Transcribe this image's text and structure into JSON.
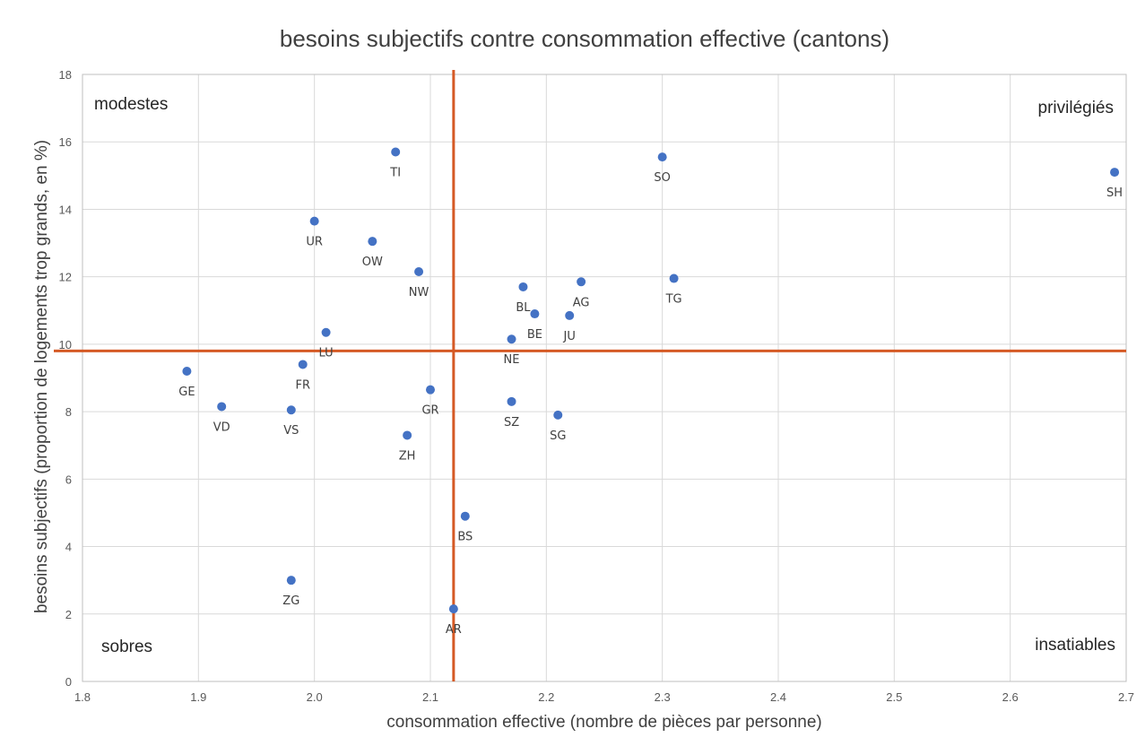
{
  "chart_data": {
    "type": "scatter",
    "title": "besoins subjectifs contre consommation effective (cantons)",
    "xlabel": "consommation effective (nombre de pièces par personne)",
    "ylabel": "besoins subjectifs (proportion de logements trop grands, en %)",
    "xlim": [
      1.8,
      2.7
    ],
    "ylim": [
      0,
      18
    ],
    "x_ticks": [
      "1.8",
      "1.9",
      "2.0",
      "2.1",
      "2.2",
      "2.3",
      "2.4",
      "2.5",
      "2.6",
      "2.7"
    ],
    "y_ticks": [
      "0",
      "2",
      "4",
      "6",
      "8",
      "10",
      "12",
      "14",
      "16",
      "18"
    ],
    "grid": true,
    "marker_color": "#4472c4",
    "reference_line_color": "#d55a25",
    "reference_lines": {
      "x": 2.12,
      "y": 9.8
    },
    "quadrant_labels": {
      "top_left": "modestes",
      "top_right": "privilégiés",
      "bottom_left": "sobres",
      "bottom_right": "insatiables"
    },
    "points": [
      {
        "label": "TI",
        "x": 2.07,
        "y": 15.7
      },
      {
        "label": "SO",
        "x": 2.3,
        "y": 15.55
      },
      {
        "label": "SH",
        "x": 2.69,
        "y": 15.1
      },
      {
        "label": "UR",
        "x": 2.0,
        "y": 13.65
      },
      {
        "label": "OW",
        "x": 2.05,
        "y": 13.05
      },
      {
        "label": "NW",
        "x": 2.09,
        "y": 12.15
      },
      {
        "label": "TG",
        "x": 2.31,
        "y": 11.95
      },
      {
        "label": "AG",
        "x": 2.23,
        "y": 11.85
      },
      {
        "label": "BL",
        "x": 2.18,
        "y": 11.7
      },
      {
        "label": "BE",
        "x": 2.19,
        "y": 10.9
      },
      {
        "label": "JU",
        "x": 2.22,
        "y": 10.85
      },
      {
        "label": "LU",
        "x": 2.01,
        "y": 10.35
      },
      {
        "label": "NE",
        "x": 2.17,
        "y": 10.15
      },
      {
        "label": "FR",
        "x": 1.99,
        "y": 9.4
      },
      {
        "label": "GE",
        "x": 1.89,
        "y": 9.2
      },
      {
        "label": "GR",
        "x": 2.1,
        "y": 8.65
      },
      {
        "label": "SZ",
        "x": 2.17,
        "y": 8.3
      },
      {
        "label": "VD",
        "x": 1.92,
        "y": 8.15
      },
      {
        "label": "VS",
        "x": 1.98,
        "y": 8.05
      },
      {
        "label": "SG",
        "x": 2.21,
        "y": 7.9
      },
      {
        "label": "ZH",
        "x": 2.08,
        "y": 7.3
      },
      {
        "label": "BS",
        "x": 2.13,
        "y": 4.9
      },
      {
        "label": "ZG",
        "x": 1.98,
        "y": 3.0
      },
      {
        "label": "AR",
        "x": 2.12,
        "y": 2.15
      }
    ]
  }
}
